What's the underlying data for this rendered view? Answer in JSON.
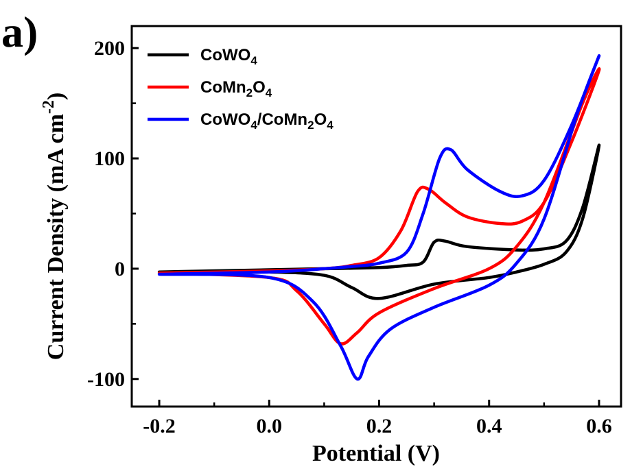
{
  "panel_label": "a)",
  "chart_data": {
    "type": "line",
    "xlabel": "Potential (V)",
    "ylabel": "Current Density (mA cm",
    "ylabel_sup": "-2",
    "ylabel_close": ")",
    "xlim": [
      -0.25,
      0.64
    ],
    "ylim": [
      -125,
      220
    ],
    "xticks": [
      -0.2,
      0.0,
      0.2,
      0.4,
      0.6
    ],
    "xtick_labels": [
      "-0.2",
      "0.0",
      "0.2",
      "0.4",
      "0.6"
    ],
    "yticks": [
      -100,
      0,
      100,
      200
    ],
    "ytick_labels": [
      "-100",
      "0",
      "100",
      "200"
    ],
    "legend_position": "top-left",
    "series": [
      {
        "name": "CoWO4",
        "legend_parts": [
          [
            "CoWO",
            false
          ],
          [
            "4",
            true
          ]
        ],
        "color": "#000000",
        "x": [
          -0.2,
          0.0,
          0.1,
          0.2,
          0.25,
          0.28,
          0.3,
          0.32,
          0.36,
          0.45,
          0.5,
          0.54,
          0.57,
          0.6,
          0.57,
          0.54,
          0.5,
          0.45,
          0.4,
          0.3,
          0.2,
          0.15,
          0.1,
          0.0,
          -0.1,
          -0.2
        ],
        "y": [
          -3,
          -1,
          0,
          1,
          3,
          6,
          24,
          25,
          20,
          17,
          18,
          25,
          55,
          112,
          45,
          15,
          4,
          -3,
          -8,
          -14,
          -27,
          -17,
          -6,
          -3,
          -3,
          -3
        ]
      },
      {
        "name": "CoMn2O4",
        "legend_parts": [
          [
            "CoMn",
            false
          ],
          [
            "2",
            true
          ],
          [
            "O",
            false
          ],
          [
            "4",
            true
          ]
        ],
        "color": "#ff0000",
        "x": [
          -0.2,
          0.0,
          0.1,
          0.15,
          0.2,
          0.24,
          0.27,
          0.29,
          0.32,
          0.36,
          0.42,
          0.46,
          0.5,
          0.55,
          0.6,
          0.57,
          0.5,
          0.45,
          0.4,
          0.3,
          0.2,
          0.16,
          0.13,
          0.1,
          0.05,
          0.0,
          -0.2
        ],
        "y": [
          -4,
          -2,
          0,
          3,
          10,
          35,
          70,
          72,
          60,
          47,
          41,
          43,
          60,
          115,
          180,
          150,
          60,
          20,
          0,
          -18,
          -40,
          -58,
          -68,
          -50,
          -20,
          -8,
          -4
        ]
      },
      {
        "name": "CoWO4/CoMn2O4",
        "legend_parts": [
          [
            "CoWO",
            false
          ],
          [
            "4",
            true
          ],
          [
            "/CoMn",
            false
          ],
          [
            "2",
            true
          ],
          [
            "O",
            false
          ],
          [
            "4",
            true
          ]
        ],
        "color": "#0000ff",
        "x": [
          -0.2,
          0.0,
          0.1,
          0.15,
          0.2,
          0.25,
          0.28,
          0.31,
          0.33,
          0.36,
          0.42,
          0.46,
          0.5,
          0.55,
          0.6,
          0.56,
          0.5,
          0.45,
          0.4,
          0.3,
          0.22,
          0.18,
          0.16,
          0.13,
          0.08,
          0.0,
          -0.2
        ],
        "y": [
          -5,
          -3,
          0,
          2,
          5,
          15,
          50,
          100,
          108,
          90,
          70,
          66,
          80,
          130,
          193,
          140,
          45,
          5,
          -15,
          -35,
          -55,
          -80,
          -100,
          -70,
          -30,
          -8,
          -5
        ]
      }
    ]
  }
}
